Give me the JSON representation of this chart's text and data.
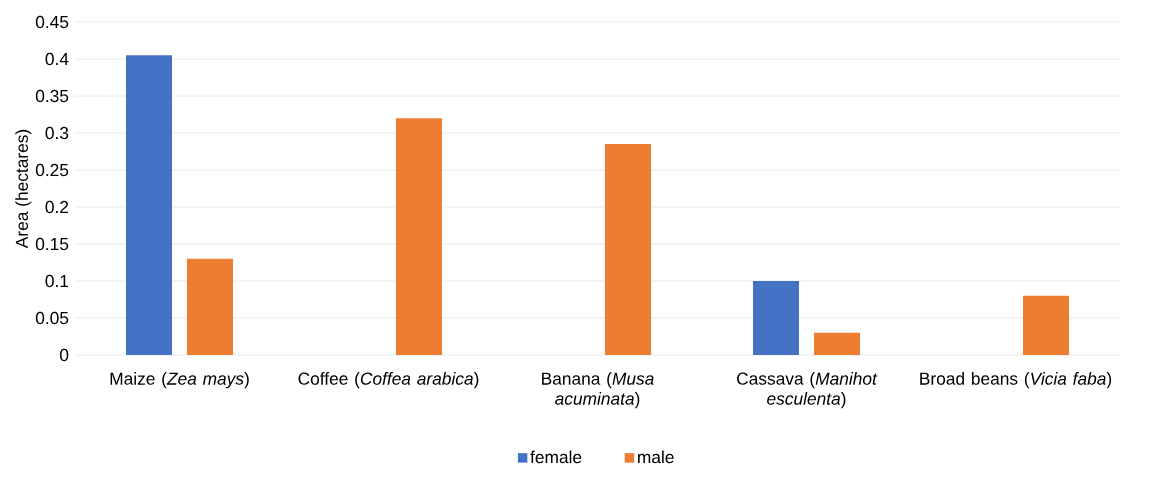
{
  "chart_data": {
    "type": "bar",
    "ylabel": "Area (hectares)",
    "categories": [
      "Maize (*Zea mays*)",
      "Coffee (*Coffea arabica*)",
      "Banana (*Musa acuminata*)",
      "Cassava (*Manihot esculenta*)",
      "Broad beans (*Vicia faba*)"
    ],
    "series": [
      {
        "name": "female",
        "color": "#4472c4",
        "values": [
          0.405,
          null,
          null,
          0.1,
          null
        ]
      },
      {
        "name": "male",
        "color": "#ed7d31",
        "values": [
          0.13,
          0.32,
          0.285,
          0.03,
          0.08
        ]
      }
    ],
    "ylim": [
      0,
      0.45
    ],
    "yticks": [
      0,
      0.05,
      0.1,
      0.15,
      0.2,
      0.25,
      0.3,
      0.35,
      0.4,
      0.45
    ],
    "grid": "y",
    "legend": "bottom"
  }
}
